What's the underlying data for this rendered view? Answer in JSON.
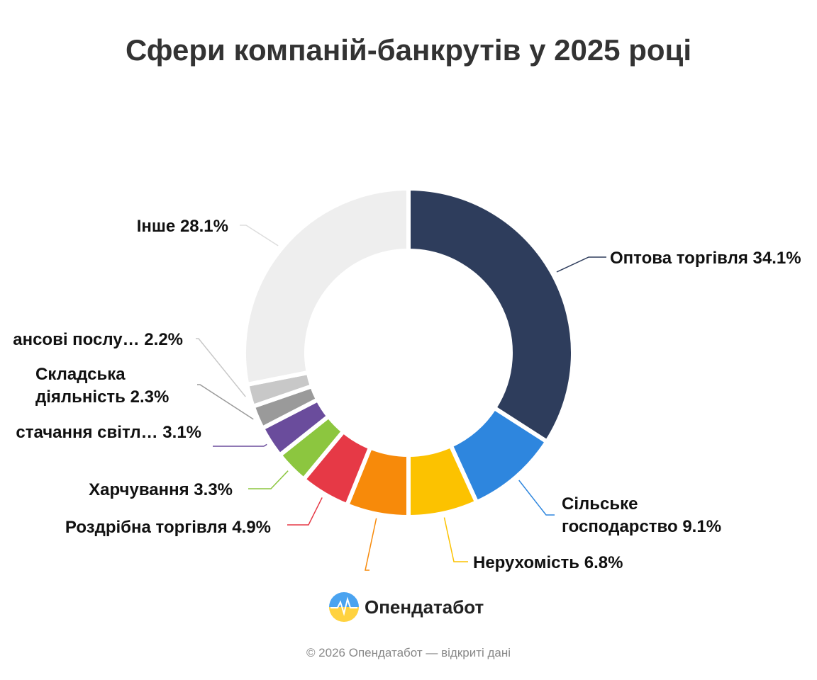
{
  "chart_data": {
    "type": "donut",
    "title": "Сфери компаній-банкрутів у 2025 році",
    "categories": [
      "Оптова торгівля",
      "Сільське господарство",
      "Нерухомість",
      null,
      "Роздрібна торгівля",
      "Харчування",
      "стачання світл…",
      "Складська діяльність",
      "ансові послу…",
      "Інше"
    ],
    "values": [
      34.1,
      9.1,
      6.8,
      6.1,
      4.9,
      3.3,
      3.1,
      2.3,
      2.2,
      28.1
    ],
    "value_labels": [
      "34.1%",
      "9.1%",
      "6.8%",
      null,
      "4.9%",
      "3.3%",
      "3.1%",
      "2.3%",
      "2.2%",
      "28.1%"
    ],
    "colors": [
      "#2e3d5c",
      "#2e86de",
      "#fcc200",
      "#f78a0a",
      "#e63946",
      "#8cc63f",
      "#6a4c9c",
      "#9a9a9a",
      "#c8c8c8",
      "#eeeeee"
    ]
  },
  "brand": {
    "name": "Опендатабот"
  },
  "footer": "© 2026 Опендатабот — відкриті дані"
}
